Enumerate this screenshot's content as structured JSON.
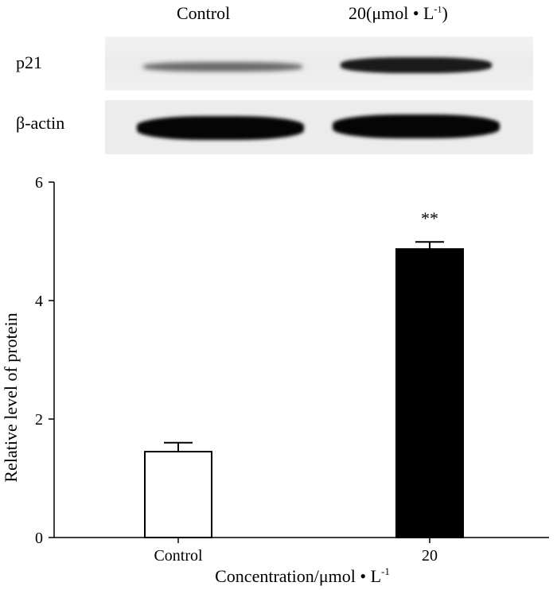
{
  "blot": {
    "lanes": [
      "Control",
      "20(μmol • L"
    ],
    "lane_sup": "-1",
    "lane_close": ")",
    "rows": [
      "p21",
      "β-actin"
    ]
  },
  "chart_data": {
    "type": "bar",
    "categories": [
      "Control",
      "20"
    ],
    "values": [
      1.45,
      4.87
    ],
    "errors": [
      0.15,
      0.12
    ],
    "bar_fill": [
      "#ffffff",
      "#000000"
    ],
    "annotations": [
      "",
      "**"
    ],
    "ylabel": "Relative level of protein",
    "xlabel": "Concentration/μmol • L",
    "xlabel_sup": "-1",
    "ylim": [
      0,
      6
    ],
    "yticks": [
      0,
      2,
      4,
      6
    ],
    "grid": false
  }
}
